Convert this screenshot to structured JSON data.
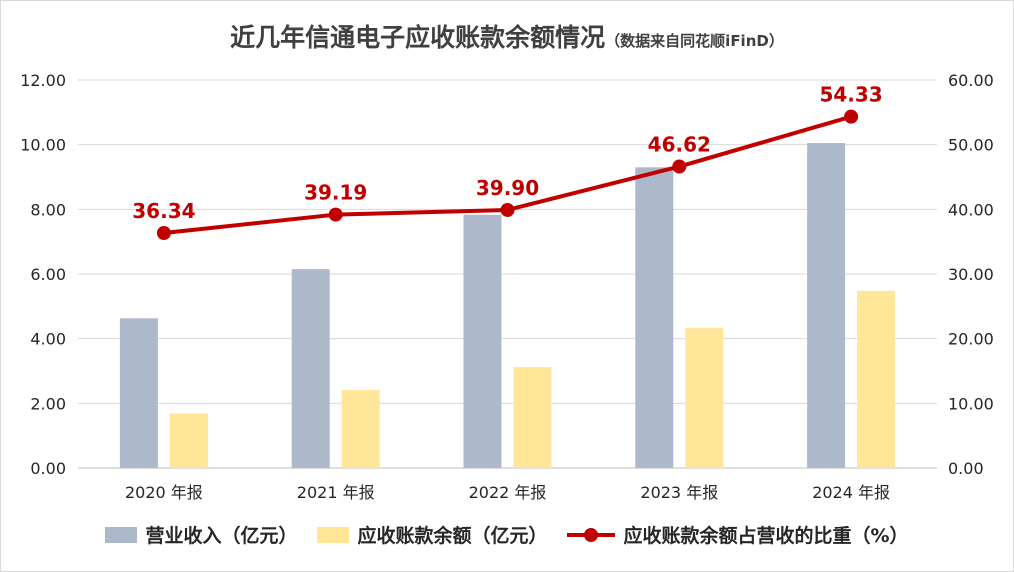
{
  "chart_data": {
    "type": "bar",
    "title": "近几年信通电子应收账款余额情况",
    "subtitle": "（数据来自同花顺iFinD）",
    "categories": [
      "2020 年报",
      "2021 年报",
      "2022 年报",
      "2023 年报",
      "2024 年报"
    ],
    "series": [
      {
        "name": "营业收入（亿元）",
        "type": "bar",
        "axis": "left",
        "color": "#adb9ca",
        "values": [
          4.63,
          6.15,
          7.83,
          9.3,
          10.05
        ]
      },
      {
        "name": "应收账款余额（亿元）",
        "type": "bar",
        "axis": "left",
        "color": "#ffe699",
        "values": [
          1.69,
          2.41,
          3.12,
          4.34,
          5.48
        ]
      },
      {
        "name": "应收账款余额占营收的比重（%）",
        "type": "line",
        "axis": "right",
        "color": "#c00000",
        "values": [
          36.34,
          39.19,
          39.9,
          46.62,
          54.33
        ],
        "labels": [
          "36.34",
          "39.19",
          "39.90",
          "46.62",
          "54.33"
        ]
      }
    ],
    "y_left": {
      "ylim": [
        0,
        12
      ],
      "ticks": [
        "0.00",
        "2.00",
        "4.00",
        "6.00",
        "8.00",
        "10.00",
        "12.00"
      ]
    },
    "y_right": {
      "ylim": [
        0,
        60
      ],
      "ticks": [
        "0.00",
        "10.00",
        "20.00",
        "30.00",
        "40.00",
        "50.00",
        "60.00"
      ]
    },
    "grid": true,
    "legend_position": "bottom"
  }
}
